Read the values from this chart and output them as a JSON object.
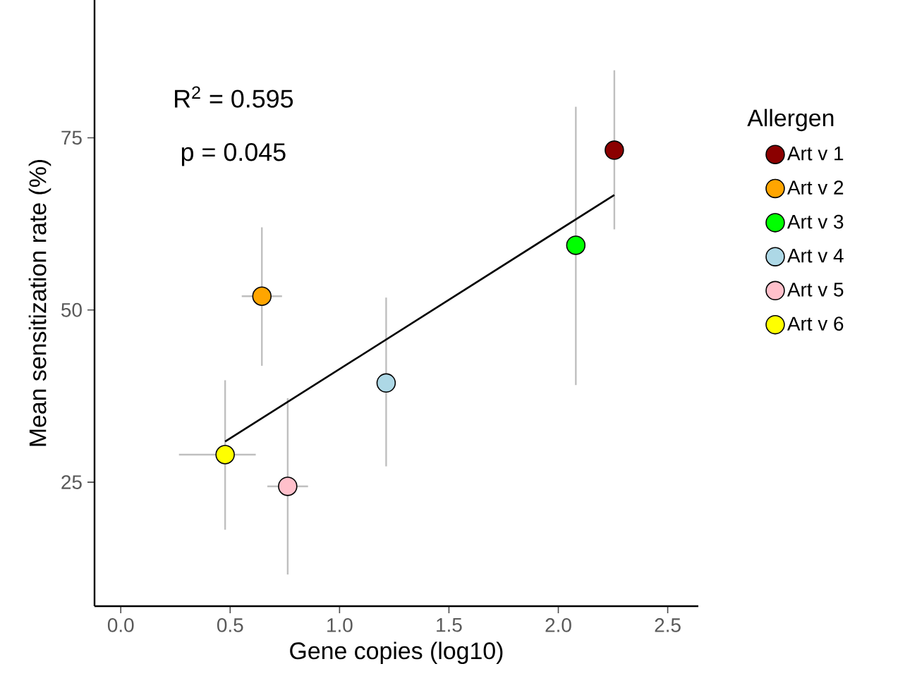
{
  "chart_data": {
    "type": "scatter",
    "xlabel": "Gene copies (log10)",
    "ylabel": "Mean sensitization rate (%)",
    "legend_title": "Allergen",
    "xlim": [
      -0.12,
      2.64
    ],
    "ylim": [
      7,
      95
    ],
    "xticks": [
      {
        "value": 0,
        "label": "0.0"
      },
      0.5,
      {
        "value": 1,
        "label": "1.0"
      },
      1.5,
      {
        "value": 2,
        "label": "2.0"
      },
      2.5
    ],
    "yticks": [
      25,
      50,
      75
    ],
    "grid": false,
    "legend": "right",
    "annotations": [
      "R$^{2}$ = 0.595",
      "p = 0.045"
    ],
    "series": [
      {
        "name": "Art v 1",
        "marker": "circle",
        "color": "#8b0000",
        "x": [
          2.256
        ],
        "values": [
          73.2
        ],
        "errors": [
          [
            61.7,
            84.8
          ]
        ]
      },
      {
        "name": "Art v 2",
        "marker": "circle",
        "color": "#ffa500",
        "x": [
          0.645
        ],
        "values": [
          52.0
        ],
        "errors": [
          [
            41.9,
            62.0
          ]
        ],
        "xerrors": [
          [
            0.553,
            0.737
          ]
        ]
      },
      {
        "name": "Art v 3",
        "marker": "circle",
        "color": "#00ff00",
        "x": [
          2.08
        ],
        "values": [
          59.4
        ],
        "errors": [
          [
            39.1,
            79.5
          ]
        ]
      },
      {
        "name": "Art v 4",
        "marker": "circle",
        "color": "#add8e6",
        "x": [
          1.213
        ],
        "values": [
          39.4
        ],
        "errors": [
          [
            27.3,
            51.8
          ]
        ]
      },
      {
        "name": "Art v 5",
        "marker": "circle",
        "color": "#ffc0cb",
        "x": [
          0.763
        ],
        "values": [
          24.4
        ],
        "errors": [
          [
            11.6,
            37.2
          ]
        ],
        "xerrors": [
          [
            0.67,
            0.856
          ]
        ]
      },
      {
        "name": "Art v 6",
        "marker": "circle",
        "color": "#ffff00",
        "x": [
          0.477
        ],
        "values": [
          29.0
        ],
        "errors": [
          [
            18.1,
            39.8
          ]
        ],
        "xerrors": [
          [
            0.266,
            0.617
          ]
        ]
      },
      {
        "type": "line",
        "marker": "none",
        "color": "#000000",
        "x": [
          0.477,
          2.256
        ],
        "values": [
          30.9,
          66.7
        ]
      }
    ]
  }
}
